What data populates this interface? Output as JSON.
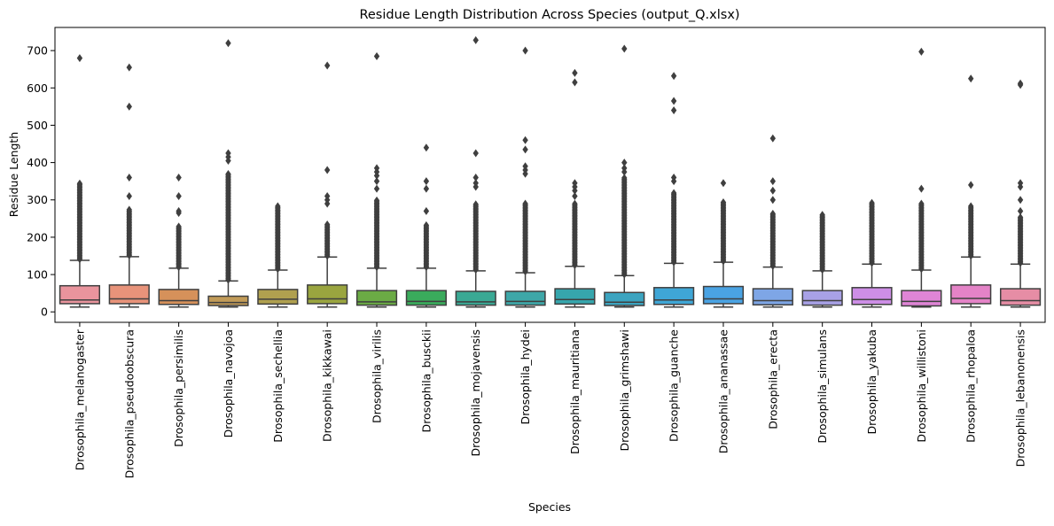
{
  "chart_data": {
    "type": "box",
    "title": "Residue Length Distribution Across Species (output_Q.xlsx)",
    "xlabel": "Species",
    "ylabel": "Residue Length",
    "ylim": [
      -28,
      762
    ],
    "yticks": [
      0,
      100,
      200,
      300,
      400,
      500,
      600,
      700
    ],
    "grid": false,
    "legend": "none",
    "categories": [
      "Drosophila_melanogaster",
      "Drosophila_pseudoobscura",
      "Drosophila_persimilis",
      "Drosophila_navojoa",
      "Drosophila_sechellia",
      "Drosophila_kikkawai",
      "Drosophila_virilis",
      "Drosophila_busckii",
      "Drosophila_mojavensis",
      "Drosophila_hydei",
      "Drosophila_mauritiana",
      "Drosophila_grimshawi",
      "Drosophila_guanche",
      "Drosophila_ananassae",
      "Drosophila_erecta",
      "Drosophila_simulans",
      "Drosophila_yakuba",
      "Drosophila_willistoni",
      "Drosophila_rhopaloa",
      "Drosophila_lebanonensis"
    ],
    "colors": [
      "#e9949d",
      "#e8937a",
      "#d6915a",
      "#c19b58",
      "#b0a04f",
      "#9aa53f",
      "#6bab45",
      "#3aab5c",
      "#3aa994",
      "#3ea7a8",
      "#36a6ad",
      "#3ca4c0",
      "#3fa6d6",
      "#4aa3e3",
      "#7ea6e6",
      "#a8a1e6",
      "#cd8ee6",
      "#df85d6",
      "#e483c7",
      "#e68da5"
    ],
    "boxes": [
      {
        "whislo": 13,
        "q1": 22,
        "med": 32,
        "q3": 70,
        "whishi": 138,
        "dense_to": 345,
        "outliers": [
          680
        ]
      },
      {
        "whislo": 13,
        "q1": 22,
        "med": 35,
        "q3": 72,
        "whishi": 148,
        "dense_to": 275,
        "outliers": [
          310,
          360,
          550,
          655
        ]
      },
      {
        "whislo": 13,
        "q1": 20,
        "med": 30,
        "q3": 60,
        "whishi": 117,
        "dense_to": 230,
        "outliers": [
          265,
          270,
          310,
          360
        ]
      },
      {
        "whislo": 13,
        "q1": 17,
        "med": 25,
        "q3": 42,
        "whishi": 83,
        "dense_to": 370,
        "outliers": [
          405,
          415,
          425,
          720
        ]
      },
      {
        "whislo": 13,
        "q1": 21,
        "med": 34,
        "q3": 60,
        "whishi": 112,
        "dense_to": 285,
        "outliers": []
      },
      {
        "whislo": 13,
        "q1": 22,
        "med": 35,
        "q3": 72,
        "whishi": 147,
        "dense_to": 235,
        "outliers": [
          290,
          300,
          310,
          380,
          660
        ]
      },
      {
        "whislo": 13,
        "q1": 18,
        "med": 27,
        "q3": 57,
        "whishi": 117,
        "dense_to": 300,
        "outliers": [
          330,
          350,
          365,
          375,
          385,
          685
        ]
      },
      {
        "whislo": 13,
        "q1": 18,
        "med": 28,
        "q3": 57,
        "whishi": 117,
        "dense_to": 235,
        "outliers": [
          270,
          330,
          350,
          440
        ]
      },
      {
        "whislo": 13,
        "q1": 18,
        "med": 27,
        "q3": 55,
        "whishi": 110,
        "dense_to": 290,
        "outliers": [
          335,
          345,
          360,
          425,
          728
        ]
      },
      {
        "whislo": 13,
        "q1": 18,
        "med": 28,
        "q3": 55,
        "whishi": 105,
        "dense_to": 290,
        "outliers": [
          370,
          380,
          390,
          435,
          460,
          700
        ]
      },
      {
        "whislo": 13,
        "q1": 21,
        "med": 33,
        "q3": 62,
        "whishi": 122,
        "dense_to": 290,
        "outliers": [
          310,
          325,
          335,
          345,
          615,
          640
        ]
      },
      {
        "whislo": 13,
        "q1": 17,
        "med": 26,
        "q3": 52,
        "whishi": 97,
        "dense_to": 360,
        "outliers": [
          375,
          385,
          400,
          705
        ]
      },
      {
        "whislo": 13,
        "q1": 20,
        "med": 32,
        "q3": 65,
        "whishi": 130,
        "dense_to": 320,
        "outliers": [
          350,
          360,
          540,
          565,
          632
        ]
      },
      {
        "whislo": 13,
        "q1": 22,
        "med": 35,
        "q3": 68,
        "whishi": 133,
        "dense_to": 295,
        "outliers": [
          345
        ]
      },
      {
        "whislo": 13,
        "q1": 19,
        "med": 30,
        "q3": 62,
        "whishi": 120,
        "dense_to": 265,
        "outliers": [
          300,
          325,
          350,
          465
        ]
      },
      {
        "whislo": 13,
        "q1": 18,
        "med": 30,
        "q3": 57,
        "whishi": 110,
        "dense_to": 262,
        "outliers": []
      },
      {
        "whislo": 13,
        "q1": 20,
        "med": 33,
        "q3": 65,
        "whishi": 128,
        "dense_to": 295,
        "outliers": []
      },
      {
        "whislo": 13,
        "q1": 16,
        "med": 28,
        "q3": 57,
        "whishi": 112,
        "dense_to": 290,
        "outliers": [
          330,
          697
        ]
      },
      {
        "whislo": 13,
        "q1": 22,
        "med": 36,
        "q3": 72,
        "whishi": 147,
        "dense_to": 285,
        "outliers": [
          340,
          625
        ]
      },
      {
        "whislo": 13,
        "q1": 18,
        "med": 30,
        "q3": 62,
        "whishi": 128,
        "dense_to": 255,
        "outliers": [
          270,
          300,
          335,
          345,
          608,
          612
        ]
      }
    ]
  }
}
